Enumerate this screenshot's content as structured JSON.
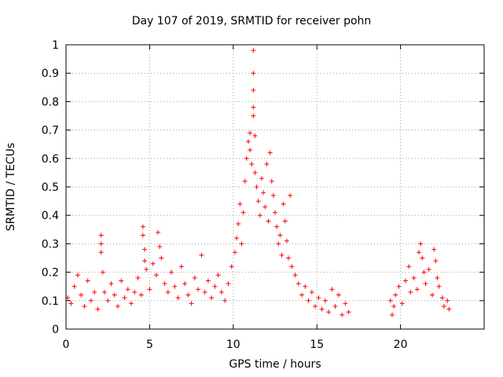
{
  "chart_data": {
    "type": "scatter",
    "title": "Day 107 of 2019, SRMTID for receiver pohn",
    "xlabel": "GPS time / hours",
    "ylabel": "SRMTID / TECUs",
    "xlim": [
      0,
      25
    ],
    "ylim": [
      0,
      1
    ],
    "xticks": [
      0,
      5,
      10,
      15,
      20
    ],
    "yticks": [
      0,
      0.1,
      0.2,
      0.3,
      0.4,
      0.5,
      0.6,
      0.7,
      0.8,
      0.9,
      1
    ],
    "ytick_labels": [
      "0",
      "0.1",
      "0.2",
      "0.3",
      "0.4",
      "0.5",
      "0.6",
      "0.7",
      "0.8",
      "0.9",
      "1"
    ],
    "grid": true,
    "marker": "+",
    "color": "#ff0000",
    "series": [
      {
        "name": "SRMTID",
        "points": [
          [
            0.1,
            0.11
          ],
          [
            0.3,
            0.09
          ],
          [
            0.5,
            0.15
          ],
          [
            0.7,
            0.19
          ],
          [
            0.9,
            0.12
          ],
          [
            1.1,
            0.08
          ],
          [
            1.3,
            0.17
          ],
          [
            1.5,
            0.1
          ],
          [
            1.7,
            0.13
          ],
          [
            1.9,
            0.07
          ],
          [
            2.1,
            0.33
          ],
          [
            2.1,
            0.3
          ],
          [
            2.1,
            0.27
          ],
          [
            2.2,
            0.2
          ],
          [
            2.3,
            0.13
          ],
          [
            2.5,
            0.1
          ],
          [
            2.7,
            0.16
          ],
          [
            2.9,
            0.12
          ],
          [
            3.1,
            0.08
          ],
          [
            3.3,
            0.17
          ],
          [
            3.5,
            0.11
          ],
          [
            3.7,
            0.14
          ],
          [
            3.9,
            0.09
          ],
          [
            4.1,
            0.13
          ],
          [
            4.3,
            0.18
          ],
          [
            4.5,
            0.12
          ],
          [
            4.6,
            0.36
          ],
          [
            4.6,
            0.33
          ],
          [
            4.7,
            0.28
          ],
          [
            4.7,
            0.24
          ],
          [
            4.8,
            0.21
          ],
          [
            5.0,
            0.14
          ],
          [
            5.2,
            0.23
          ],
          [
            5.4,
            0.19
          ],
          [
            5.5,
            0.34
          ],
          [
            5.6,
            0.29
          ],
          [
            5.7,
            0.25
          ],
          [
            5.9,
            0.16
          ],
          [
            6.1,
            0.13
          ],
          [
            6.3,
            0.2
          ],
          [
            6.5,
            0.15
          ],
          [
            6.7,
            0.11
          ],
          [
            6.9,
            0.22
          ],
          [
            7.1,
            0.16
          ],
          [
            7.3,
            0.12
          ],
          [
            7.5,
            0.09
          ],
          [
            7.7,
            0.18
          ],
          [
            7.9,
            0.14
          ],
          [
            8.1,
            0.26
          ],
          [
            8.3,
            0.13
          ],
          [
            8.5,
            0.17
          ],
          [
            8.7,
            0.11
          ],
          [
            8.9,
            0.15
          ],
          [
            9.1,
            0.19
          ],
          [
            9.3,
            0.13
          ],
          [
            9.5,
            0.1
          ],
          [
            9.7,
            0.16
          ],
          [
            9.9,
            0.22
          ],
          [
            10.1,
            0.27
          ],
          [
            10.2,
            0.32
          ],
          [
            10.3,
            0.37
          ],
          [
            10.4,
            0.44
          ],
          [
            10.5,
            0.3
          ],
          [
            10.6,
            0.41
          ],
          [
            10.7,
            0.52
          ],
          [
            10.8,
            0.6
          ],
          [
            10.9,
            0.66
          ],
          [
            11.0,
            0.69
          ],
          [
            11.0,
            0.63
          ],
          [
            11.1,
            0.58
          ],
          [
            11.2,
            0.98
          ],
          [
            11.2,
            0.9
          ],
          [
            11.2,
            0.84
          ],
          [
            11.2,
            0.78
          ],
          [
            11.2,
            0.75
          ],
          [
            11.3,
            0.68
          ],
          [
            11.3,
            0.55
          ],
          [
            11.4,
            0.5
          ],
          [
            11.5,
            0.45
          ],
          [
            11.6,
            0.4
          ],
          [
            11.7,
            0.53
          ],
          [
            11.8,
            0.48
          ],
          [
            11.9,
            0.43
          ],
          [
            12.0,
            0.58
          ],
          [
            12.1,
            0.38
          ],
          [
            12.2,
            0.62
          ],
          [
            12.3,
            0.52
          ],
          [
            12.4,
            0.47
          ],
          [
            12.5,
            0.41
          ],
          [
            12.6,
            0.36
          ],
          [
            12.7,
            0.3
          ],
          [
            12.8,
            0.33
          ],
          [
            12.9,
            0.26
          ],
          [
            13.0,
            0.44
          ],
          [
            13.1,
            0.38
          ],
          [
            13.2,
            0.31
          ],
          [
            13.3,
            0.25
          ],
          [
            13.4,
            0.47
          ],
          [
            13.5,
            0.22
          ],
          [
            13.7,
            0.19
          ],
          [
            13.9,
            0.16
          ],
          [
            14.1,
            0.12
          ],
          [
            14.3,
            0.15
          ],
          [
            14.5,
            0.1
          ],
          [
            14.7,
            0.13
          ],
          [
            14.9,
            0.08
          ],
          [
            15.1,
            0.11
          ],
          [
            15.3,
            0.07
          ],
          [
            15.5,
            0.1
          ],
          [
            15.7,
            0.06
          ],
          [
            15.9,
            0.14
          ],
          [
            16.1,
            0.08
          ],
          [
            16.3,
            0.12
          ],
          [
            16.5,
            0.05
          ],
          [
            16.7,
            0.09
          ],
          [
            16.9,
            0.06
          ],
          [
            19.4,
            0.1
          ],
          [
            19.5,
            0.05
          ],
          [
            19.6,
            0.08
          ],
          [
            19.7,
            0.12
          ],
          [
            19.9,
            0.15
          ],
          [
            20.1,
            0.09
          ],
          [
            20.3,
            0.17
          ],
          [
            20.5,
            0.22
          ],
          [
            20.6,
            0.13
          ],
          [
            20.8,
            0.18
          ],
          [
            21.0,
            0.14
          ],
          [
            21.1,
            0.27
          ],
          [
            21.2,
            0.3
          ],
          [
            21.3,
            0.25
          ],
          [
            21.4,
            0.2
          ],
          [
            21.5,
            0.16
          ],
          [
            21.7,
            0.21
          ],
          [
            21.9,
            0.12
          ],
          [
            22.0,
            0.28
          ],
          [
            22.1,
            0.24
          ],
          [
            22.2,
            0.18
          ],
          [
            22.3,
            0.15
          ],
          [
            22.5,
            0.11
          ],
          [
            22.6,
            0.08
          ],
          [
            22.8,
            0.1
          ],
          [
            22.9,
            0.07
          ]
        ]
      }
    ]
  }
}
